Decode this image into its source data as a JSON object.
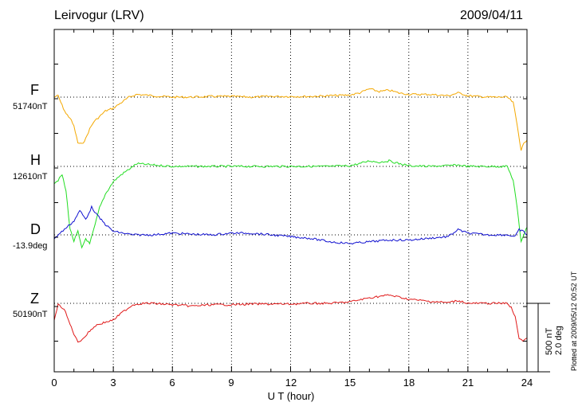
{
  "header": {
    "station": "Leirvogur (LRV)",
    "date": "2009/04/11"
  },
  "footer": {
    "plotted_at": "Plotted at 2009/05/12 00:52 UT"
  },
  "scale": {
    "nt": "500 nT",
    "deg": "2.0 deg"
  },
  "channels": [
    {
      "label": "F",
      "baseline": "51740nT",
      "color": "#f4a800"
    },
    {
      "label": "H",
      "baseline": "12610nT",
      "color": "#22dd22"
    },
    {
      "label": "D",
      "baseline": "-13.9deg",
      "color": "#1010d0"
    },
    {
      "label": "Z",
      "baseline": "50190nT",
      "color": "#e01818"
    }
  ],
  "chart_data": {
    "type": "line",
    "title": "Leirvogur (LRV)",
    "date": "2009/04/11",
    "xlabel": "U T (hour)",
    "xlim": [
      0,
      24
    ],
    "xticks": [
      0,
      3,
      6,
      9,
      12,
      15,
      18,
      21,
      24
    ],
    "scale_bar": {
      "nT": 500,
      "deg": 2.0
    },
    "grid": true,
    "series": [
      {
        "name": "F",
        "baseline": "51740nT",
        "unit": "nT",
        "x": [
          0,
          0.2,
          0.4,
          0.6,
          0.8,
          1.0,
          1.2,
          1.4,
          1.6,
          1.8,
          2.0,
          2.3,
          2.6,
          3.0,
          3.4,
          3.8,
          4.2,
          5.0,
          6.0,
          7.0,
          8.0,
          9.0,
          10.0,
          11.0,
          12.0,
          13.0,
          14.0,
          15.0,
          15.5,
          16.0,
          16.5,
          17.0,
          17.5,
          18.0,
          19.0,
          20.0,
          20.5,
          20.8,
          21.0,
          22.0,
          23.0,
          23.3,
          23.5,
          23.7,
          23.9,
          24.0
        ],
        "y": [
          0,
          10,
          -60,
          -120,
          -150,
          -210,
          -330,
          -340,
          -300,
          -230,
          -180,
          -140,
          -100,
          -80,
          -40,
          0,
          20,
          10,
          0,
          0,
          5,
          5,
          0,
          5,
          5,
          5,
          10,
          15,
          30,
          60,
          40,
          50,
          30,
          20,
          20,
          10,
          30,
          20,
          10,
          0,
          0,
          -40,
          -200,
          -380,
          -320,
          -310
        ]
      },
      {
        "name": "H",
        "baseline": "12610nT",
        "unit": "nT",
        "x": [
          0,
          0.2,
          0.4,
          0.6,
          0.8,
          1.0,
          1.2,
          1.4,
          1.6,
          1.8,
          2.0,
          2.3,
          2.6,
          3.0,
          3.4,
          3.8,
          4.2,
          5.0,
          6.0,
          7.0,
          8.0,
          9.0,
          10.0,
          11.0,
          12.0,
          13.0,
          14.0,
          15.0,
          15.5,
          16.0,
          16.5,
          17.0,
          17.5,
          18.0,
          19.0,
          20.0,
          20.5,
          21.0,
          22.0,
          23.0,
          23.3,
          23.5,
          23.7,
          23.9,
          24.0
        ],
        "y": [
          -120,
          -100,
          -60,
          -180,
          -450,
          -540,
          -470,
          -590,
          -520,
          -560,
          -460,
          -300,
          -200,
          -110,
          -60,
          -20,
          20,
          10,
          0,
          0,
          0,
          0,
          0,
          0,
          0,
          0,
          0,
          5,
          20,
          40,
          30,
          40,
          20,
          5,
          0,
          5,
          10,
          0,
          0,
          0,
          -100,
          -300,
          -540,
          -470,
          -440
        ]
      },
      {
        "name": "D",
        "baseline": "-13.9deg",
        "unit": "deg",
        "x": [
          0,
          0.3,
          0.6,
          1.0,
          1.3,
          1.6,
          1.9,
          2.2,
          2.6,
          3.0,
          3.5,
          4.0,
          5.0,
          6.0,
          7.0,
          8.0,
          9.0,
          10.0,
          11.0,
          12.0,
          13.0,
          14.0,
          15.0,
          16.0,
          17.0,
          18.0,
          19.0,
          20.0,
          20.5,
          21.0,
          22.0,
          23.0,
          23.4,
          23.6,
          23.8,
          24.0
        ],
        "y": [
          -0.1,
          0.05,
          0.2,
          0.4,
          0.7,
          0.45,
          0.8,
          0.55,
          0.3,
          0.1,
          0.05,
          0.0,
          0.0,
          0.05,
          0.02,
          0.0,
          0.05,
          0.05,
          0.0,
          -0.05,
          -0.1,
          -0.2,
          -0.25,
          -0.2,
          -0.15,
          -0.15,
          -0.1,
          -0.05,
          0.15,
          0.05,
          0.0,
          0.0,
          -0.05,
          0.15,
          0.1,
          0.0
        ]
      },
      {
        "name": "Z",
        "baseline": "50190nT",
        "unit": "nT",
        "x": [
          0,
          0.2,
          0.5,
          0.8,
          1.0,
          1.2,
          1.5,
          1.8,
          2.1,
          2.5,
          3.0,
          3.5,
          4.0,
          4.5,
          5.0,
          6.0,
          7.0,
          8.0,
          9.0,
          10.0,
          11.0,
          12.0,
          13.0,
          14.0,
          15.0,
          16.0,
          17.0,
          18.0,
          19.0,
          20.0,
          20.5,
          21.0,
          22.0,
          23.0,
          23.2,
          23.4,
          23.6,
          23.8,
          24.0
        ],
        "y": [
          -120,
          -10,
          -40,
          -150,
          -220,
          -280,
          -250,
          -200,
          -160,
          -140,
          -120,
          -60,
          -10,
          0,
          0,
          -10,
          -20,
          -10,
          -10,
          -5,
          -5,
          -5,
          0,
          0,
          10,
          40,
          60,
          30,
          15,
          5,
          20,
          0,
          0,
          0,
          -30,
          -100,
          -250,
          -270,
          -250
        ]
      }
    ]
  }
}
